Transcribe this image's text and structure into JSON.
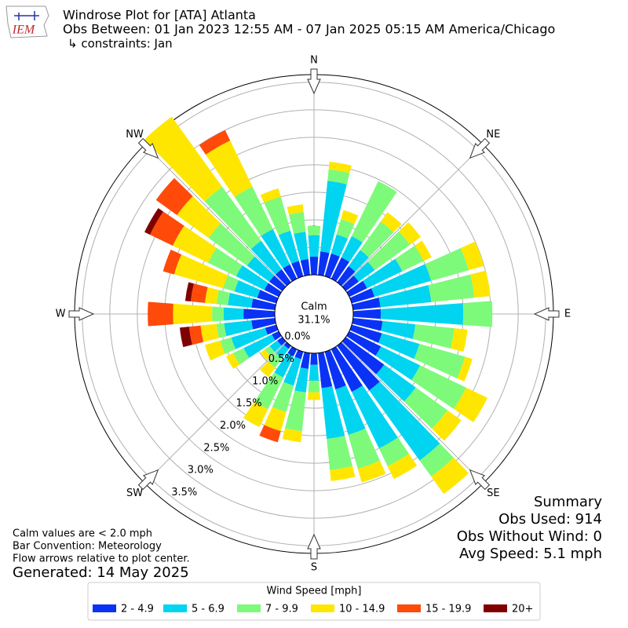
{
  "chart_data": {
    "type": "windrose",
    "logo_text": "IEM",
    "title": "Windrose Plot for [ATA] Atlanta",
    "subtitle": "Obs Between: 01 Jan 2023 12:55 AM - 07 Jan 2025 05:15 AM America/Chicago",
    "constraints": "↳ constraints: Jan",
    "compass": [
      "N",
      "NE",
      "E",
      "SE",
      "S",
      "SW",
      "W",
      "NW"
    ],
    "calm_label": "Calm",
    "calm_value": "31.1%",
    "ylim": [
      0,
      3.64
    ],
    "yticks": [
      {
        "value": 0,
        "label": "0.0%"
      },
      {
        "value": 0.5,
        "label": "0.5%"
      },
      {
        "value": 1,
        "label": "1.0%"
      },
      {
        "value": 1.5,
        "label": "1.5%"
      },
      {
        "value": 2,
        "label": "2.0%"
      },
      {
        "value": 2.5,
        "label": "2.5%"
      },
      {
        "value": 3,
        "label": "3.0%"
      },
      {
        "value": 3.5,
        "label": "3.5%"
      }
    ],
    "grid": true,
    "legend_title": "Wind Speed [mph]",
    "series": [
      {
        "name": "2 - 4.9",
        "color": "#0a32f5",
        "values": [
          0.33,
          0.43,
          0.43,
          0.43,
          0.36,
          0.29,
          0.36,
          0.43,
          0.5,
          0.5,
          0.54,
          0.57,
          0.64,
          0.86,
          1.0,
          0.86,
          0.71,
          0.64,
          0.21,
          0.29,
          0.14,
          0.14,
          0.07,
          0.11,
          0.14,
          0.21,
          0.43,
          0.57,
          0.43,
          0.36,
          0.29,
          0.29,
          0.29,
          0.29,
          0.29,
          0.29
        ]
      },
      {
        "name": "5 - 6.9",
        "color": "#00d4f0",
        "values": [
          0.39,
          1.29,
          0.36,
          0.43,
          0.36,
          0.36,
          0.71,
          1.07,
          0.93,
          1.5,
          0.6,
          0.71,
          0.79,
          0.71,
          1.57,
          1.14,
          0.86,
          0.93,
          0.29,
          0.43,
          0.5,
          0.43,
          0.21,
          0.17,
          0.57,
          0.64,
          0.5,
          0.36,
          0.43,
          0.43,
          0.57,
          0.5,
          0.64,
          0.71,
          0.57,
          0.5
        ]
      },
      {
        "name": "7 - 9.9",
        "color": "#7dfa7a",
        "values": [
          0.17,
          0.21,
          0.29,
          1.11,
          0.64,
          0.79,
          0.43,
          0.71,
          0.79,
          0.53,
          0.71,
          0.86,
          0.93,
          0.71,
          0.36,
          0.36,
          0.64,
          0.57,
          0.21,
          0.71,
          0.5,
          0.64,
          0.21,
          0.11,
          0.21,
          0.21,
          0.14,
          0.21,
          0.21,
          0.21,
          0.57,
          0.86,
          1.21,
          0.86,
          0.64,
          0.36
        ]
      },
      {
        "name": "10 - 14.9",
        "color": "#ffe600",
        "values": [
          0,
          0.14,
          0.17,
          0,
          0.21,
          0.24,
          0.16,
          0.29,
          0.29,
          0,
          0.24,
          0.14,
          0.43,
          0.31,
          0.39,
          0.26,
          0.26,
          0.2,
          0.14,
          0.2,
          0.36,
          0.36,
          0.21,
          0.1,
          0.14,
          0.29,
          0.29,
          0.71,
          0.21,
          0.93,
          0.71,
          0.71,
          1.57,
          0.93,
          0.16,
          0.14
        ]
      },
      {
        "name": "15 - 19.9",
        "color": "#ff4a0a",
        "values": [
          0,
          0,
          0,
          0,
          0,
          0,
          0,
          0,
          0,
          0,
          0,
          0,
          0,
          0,
          0,
          0,
          0,
          0,
          0,
          0,
          0.21,
          0,
          0,
          0,
          0,
          0,
          0.21,
          0.46,
          0.26,
          0.21,
          0.46,
          0.47,
          0,
          0.21,
          0,
          0
        ]
      },
      {
        "name": "20+",
        "color": "#800000",
        "values": [
          0,
          0,
          0,
          0,
          0,
          0,
          0,
          0,
          0,
          0,
          0,
          0,
          0,
          0,
          0,
          0,
          0,
          0,
          0,
          0,
          0,
          0,
          0,
          0,
          0,
          0,
          0.17,
          0,
          0.1,
          0,
          0.11,
          0,
          0,
          0,
          0,
          0
        ]
      }
    ],
    "summary": [
      "Summary",
      "Obs Used: 914",
      "Obs Without Wind: 0",
      "Avg Speed: 5.1 mph"
    ],
    "notes": [
      "Calm values are < 2.0 mph",
      "Bar Convention: Meteorology",
      "Flow arrows relative to plot center."
    ],
    "generated": "Generated: 14 May 2025"
  }
}
